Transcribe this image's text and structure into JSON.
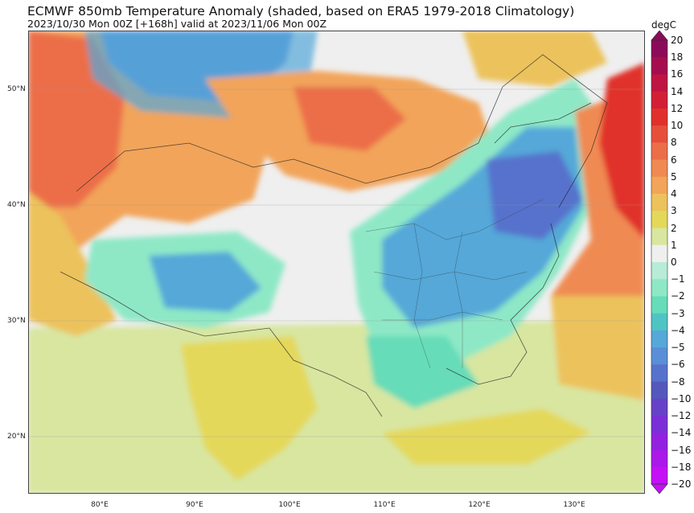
{
  "title": "ECMWF 850mb Temperature Anomaly (shaded, based on ERA5 1979-2018 Climatology)",
  "subtitle": "2023/10/30 Mon 00Z [+168h] valid at 2023/11/06 Mon 00Z",
  "colorbar": {
    "unit": "degC",
    "levels": [
      "20",
      "18",
      "16",
      "14",
      "12",
      "10",
      "8",
      "6",
      "5",
      "4",
      "3",
      "2",
      "1",
      "0",
      "−1",
      "−2",
      "−3",
      "−4",
      "−5",
      "−6",
      "−8",
      "−10",
      "−12",
      "−14",
      "−16",
      "−18",
      "−20"
    ],
    "colors": [
      "#8c0a5a",
      "#a50e4e",
      "#be1542",
      "#d21f36",
      "#e0302c",
      "#e6503a",
      "#ec6e48",
      "#f08a52",
      "#f2a45a",
      "#ecc25c",
      "#e4d85a",
      "#d8e6a0",
      "#efefef",
      "#b8ecd8",
      "#8ee8c6",
      "#66dcb8",
      "#50c4c4",
      "#55a8d8",
      "#5a8ed6",
      "#5672cc",
      "#5458bc",
      "#6642c8",
      "#7a30d6",
      "#9222e0",
      "#aa18ea",
      "#c410f6"
    ]
  },
  "axes": {
    "lat_labels": [
      "50°N",
      "40°N",
      "30°N",
      "20°N"
    ],
    "lon_labels": [
      "80°E",
      "90°E",
      "100°E",
      "110°E",
      "120°E",
      "130°E"
    ]
  },
  "map": {
    "region": "East Asia",
    "lat_range": [
      15,
      55
    ],
    "lon_range": [
      72.5,
      137.5
    ],
    "anomaly_areas": [
      {
        "name": "northwest-warm",
        "lon": 77,
        "lat": 45,
        "anomaly": 6
      },
      {
        "name": "mongolia-warm",
        "lon": 103,
        "lat": 49,
        "anomaly": 4
      },
      {
        "name": "siberia-cold",
        "lon": 95,
        "lat": 52,
        "anomaly": -4
      },
      {
        "name": "tibet-cold",
        "lon": 88,
        "lat": 33,
        "anomaly": -3
      },
      {
        "name": "north-china-cold",
        "lon": 120,
        "lat": 41,
        "anomaly": -8
      },
      {
        "name": "central-china-cold",
        "lon": 113,
        "lat": 33,
        "anomaly": -5
      },
      {
        "name": "south-china-cool",
        "lon": 110,
        "lat": 29,
        "anomaly": -2
      },
      {
        "name": "japan-warm",
        "lon": 135,
        "lat": 37,
        "anomaly": 8
      },
      {
        "name": "india-warm",
        "lon": 80,
        "lat": 26,
        "anomaly": 2
      },
      {
        "name": "south-sea-warm",
        "lon": 125,
        "lat": 23,
        "anomaly": 2
      }
    ]
  }
}
